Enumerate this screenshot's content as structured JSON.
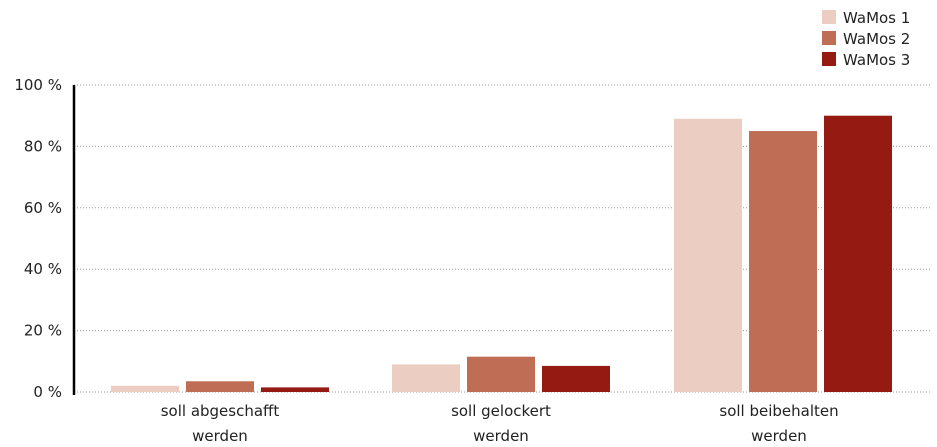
{
  "chart_data": {
    "type": "bar",
    "categories": [
      [
        "soll abgeschafft",
        "werden"
      ],
      [
        "soll gelockert",
        "werden"
      ],
      [
        "soll beibehalten",
        "werden"
      ]
    ],
    "series": [
      {
        "name": "WaMos 1",
        "color": "#eccdc1",
        "values": [
          2,
          9,
          89
        ]
      },
      {
        "name": "WaMos 2",
        "color": "#bf6e55",
        "values": [
          3.5,
          11.5,
          85
        ]
      },
      {
        "name": "WaMos 3",
        "color": "#951b12",
        "values": [
          1.5,
          8.5,
          90
        ]
      }
    ],
    "yticks": [
      "0 %",
      "20 %",
      "40 %",
      "60 %",
      "80 %",
      "100 %"
    ],
    "ylim": [
      0,
      100
    ],
    "grid": true,
    "legend_position": "top-right"
  }
}
